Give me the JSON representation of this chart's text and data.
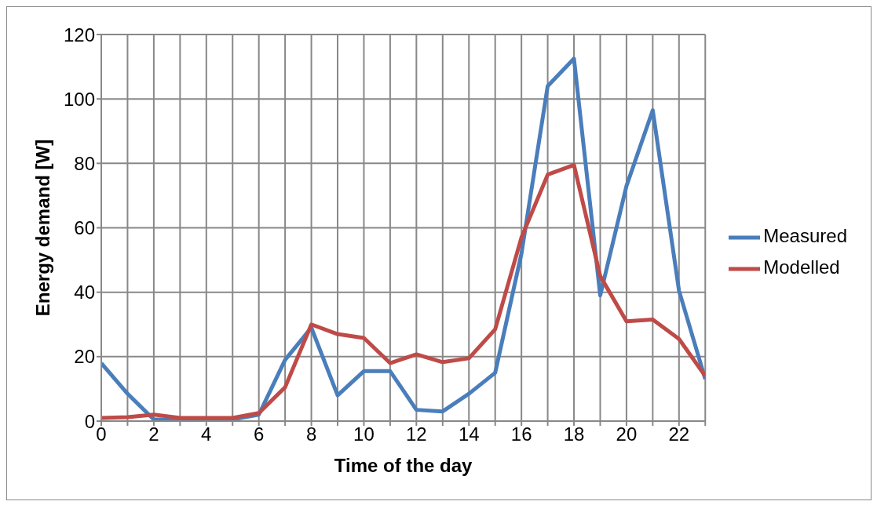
{
  "chart_data": {
    "type": "line",
    "xlabel": "Time of the day",
    "ylabel": "Energy demand [W]",
    "x": [
      0,
      1,
      2,
      3,
      4,
      5,
      6,
      7,
      8,
      9,
      10,
      11,
      12,
      13,
      14,
      15,
      16,
      17,
      18,
      19,
      20,
      21,
      22,
      23
    ],
    "series": [
      {
        "name": "Measured",
        "color": "#4a7ebb",
        "values": [
          18,
          8.5,
          0.5,
          0.5,
          0.5,
          0.5,
          2,
          19,
          29,
          8,
          15.5,
          15.5,
          3.5,
          3,
          8.5,
          15,
          52,
          104,
          112.5,
          39,
          73,
          96.5,
          40.5,
          13
        ]
      },
      {
        "name": "Modelled",
        "color": "#be4b48",
        "values": [
          1,
          1.2,
          2,
          1,
          1,
          1,
          2.5,
          10.5,
          30,
          27,
          25.8,
          18,
          20.7,
          18.3,
          19.5,
          28.5,
          57,
          76.5,
          79.5,
          45,
          31,
          31.5,
          25.5,
          14
        ]
      }
    ],
    "xlim": [
      0,
      23
    ],
    "xticks": [
      0,
      {
        "value": 1,
        "label": null
      },
      2,
      {
        "value": 3,
        "label": null
      },
      4,
      {
        "value": 5,
        "label": null
      },
      6,
      {
        "value": 7,
        "label": null
      },
      8,
      {
        "value": 9,
        "label": null
      },
      10,
      {
        "value": 11,
        "label": null
      },
      12,
      {
        "value": 13,
        "label": null
      },
      14,
      {
        "value": 15,
        "label": null
      },
      16,
      {
        "value": 17,
        "label": null
      },
      18,
      {
        "value": 19,
        "label": null
      },
      20,
      {
        "value": 21,
        "label": null
      },
      22,
      {
        "value": 23,
        "label": null
      }
    ],
    "ylim": [
      0,
      120
    ],
    "yticks": [
      0,
      20,
      40,
      60,
      80,
      100,
      120
    ],
    "grid": true,
    "legend": "right",
    "marker": "none",
    "line_style": "solid"
  }
}
